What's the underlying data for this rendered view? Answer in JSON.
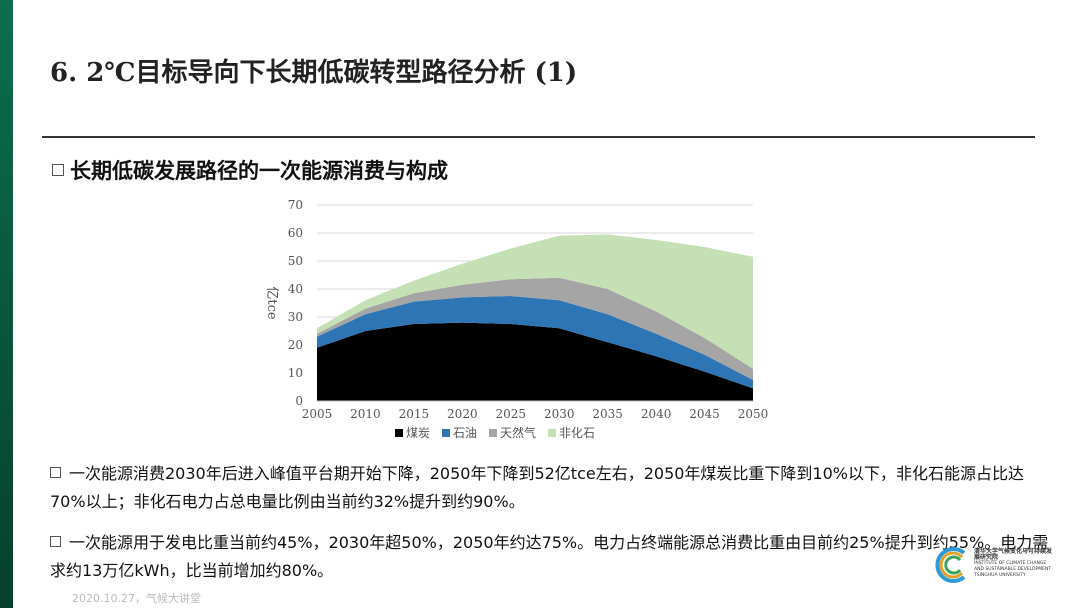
{
  "page_title": "6. 2℃目标导向下长期低碳转型路径分析 (1)",
  "section_heading": "长期低碳发展路径的一次能源消费与构成",
  "bullets": [
    "一次能源消费2030年后进入峰值平台期开始下降，2050年下降到52亿tce左右，2050年煤炭比重下降到10%以下，非化石能源占比达70%以上；非化石电力占总电量比例由当前约32%提升到约90%。",
    "一次能源用于发电比重当前约45%，2030年超50%，2050年约达75%。电力占终端能源总消费比重由目前约25%提升到约55%。电力需求约13万亿kWh，比当前增加约80%。"
  ],
  "footer": "2020.10.27，气候大讲堂",
  "logo": {
    "cn": "清华大学气候变化与可持续发展研究院",
    "en_line1": "INSTITUTE OF CLIMATE CHANGE",
    "en_line2": "AND SUSTAINABLE DEVELOPMENT",
    "en_line3": "TSINGHUA UNIVERSITY"
  },
  "chart_data": {
    "type": "area",
    "stacked": true,
    "ylabel": "亿tce",
    "ylim": [
      0,
      70
    ],
    "yticks": [
      0,
      10,
      20,
      30,
      40,
      50,
      60,
      70
    ],
    "x": [
      "2005",
      "2010",
      "2015",
      "2020",
      "2025",
      "2030",
      "2035",
      "2040",
      "2045",
      "2050"
    ],
    "series": [
      {
        "name": "煤炭",
        "color": "#000000",
        "values": [
          19,
          25,
          27.5,
          28,
          27.5,
          26,
          21,
          16,
          10.5,
          4.5
        ]
      },
      {
        "name": "石油",
        "color": "#2e75b6",
        "values": [
          4,
          6,
          8,
          9,
          10,
          10,
          10,
          8,
          6,
          3
        ]
      },
      {
        "name": "天然气",
        "color": "#a5a5a5",
        "values": [
          1,
          2,
          3,
          4.5,
          6,
          8,
          9,
          8,
          6,
          4
        ]
      },
      {
        "name": "非化石",
        "color": "#c5e0b4",
        "values": [
          2,
          3,
          4.5,
          7.5,
          11,
          15,
          19.5,
          25.5,
          32.5,
          40
        ]
      }
    ]
  }
}
